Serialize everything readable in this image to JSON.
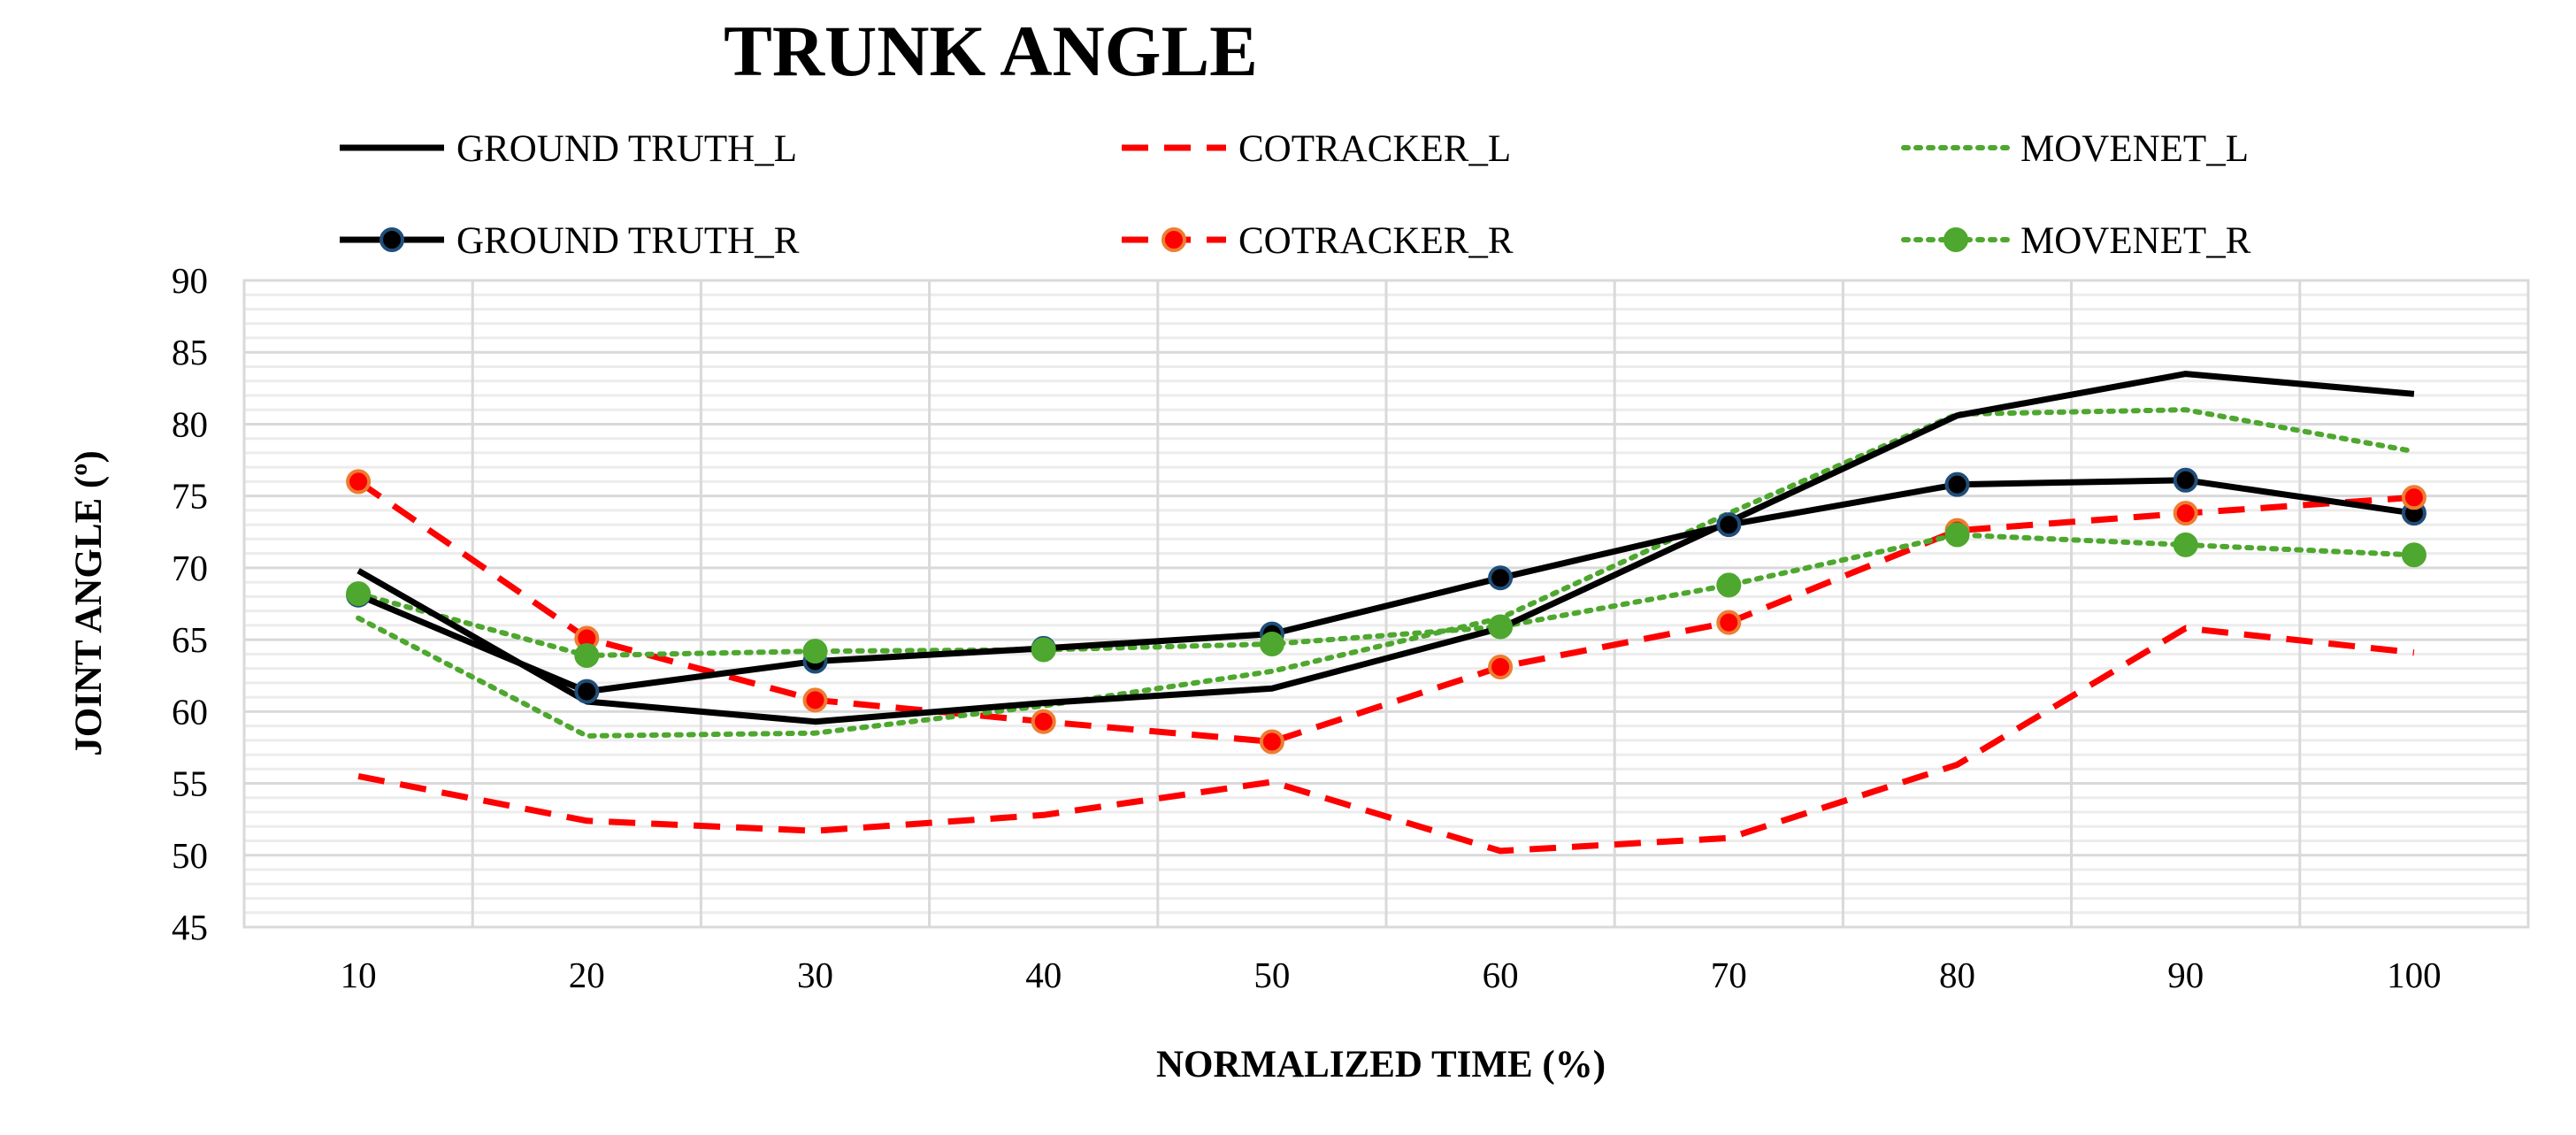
{
  "chart_data": {
    "type": "line",
    "title": "TRUNK ANGLE",
    "xlabel": "NORMALIZED TIME (%)",
    "ylabel": "JOINT ANGLE (º)",
    "x": [
      10,
      20,
      30,
      40,
      50,
      60,
      70,
      80,
      90,
      100
    ],
    "xlim": [
      5,
      105
    ],
    "ylim": [
      45,
      90
    ],
    "yticks": [
      45,
      50,
      55,
      60,
      65,
      70,
      75,
      80,
      85,
      90
    ],
    "grid": true,
    "legend_position": "top",
    "series": [
      {
        "name": "GROUND TRUTH_L",
        "color": "#000000",
        "dash": "solid",
        "marker": false,
        "values": [
          69.8,
          60.7,
          59.3,
          60.6,
          61.6,
          65.8,
          73.2,
          80.6,
          83.5,
          82.1
        ]
      },
      {
        "name": "COTRACKER_L",
        "color": "#ff0000",
        "dash": "dashed",
        "marker": false,
        "values": [
          55.5,
          52.4,
          51.7,
          52.8,
          55.1,
          50.3,
          51.2,
          56.3,
          65.8,
          64.1
        ]
      },
      {
        "name": "MOVENET_L",
        "color": "#4ea72e",
        "dash": "dotted",
        "marker": false,
        "values": [
          66.5,
          58.3,
          58.5,
          60.4,
          62.8,
          66.5,
          73.8,
          80.7,
          81.0,
          78.1
        ]
      },
      {
        "name": "GROUND TRUTH_R",
        "color": "#000000",
        "dash": "solid",
        "marker": true,
        "marker_fill": "#000000",
        "marker_edge": "#1f4e79",
        "values": [
          68.1,
          61.4,
          63.5,
          64.4,
          65.4,
          69.3,
          73.0,
          75.8,
          76.1,
          73.8
        ]
      },
      {
        "name": "COTRACKER_R",
        "color": "#ff0000",
        "dash": "dashed",
        "marker": true,
        "marker_fill": "#ff0000",
        "marker_edge": "#ed7d31",
        "values": [
          76.0,
          65.1,
          60.8,
          59.3,
          57.9,
          63.1,
          66.2,
          72.6,
          73.8,
          74.9
        ]
      },
      {
        "name": "MOVENET_R",
        "color": "#4ea72e",
        "dash": "dotted",
        "marker": true,
        "marker_fill": "#4ea72e",
        "marker_edge": "#4ea72e",
        "values": [
          68.2,
          63.9,
          64.2,
          64.3,
          64.7,
          65.9,
          68.8,
          72.3,
          71.6,
          70.9
        ]
      }
    ]
  }
}
